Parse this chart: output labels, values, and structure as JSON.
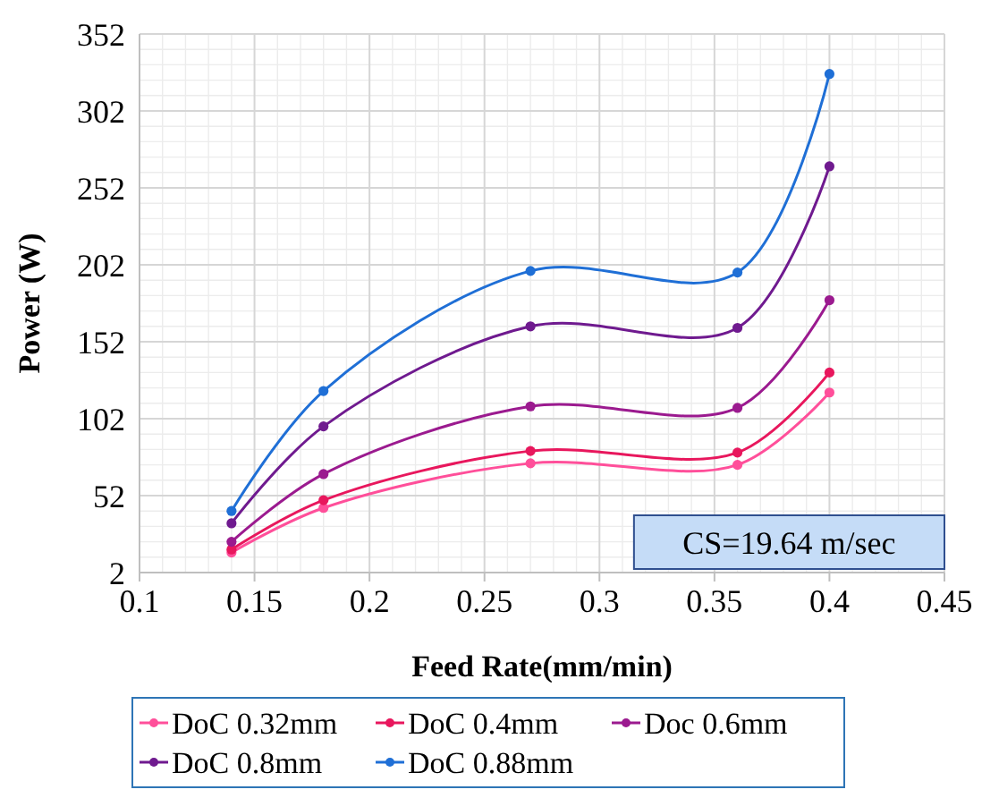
{
  "chart_data": {
    "type": "line",
    "xlabel": "Feed Rate(mm/min)",
    "ylabel": "Power (W)",
    "x": [
      0.14,
      0.18,
      0.27,
      0.36,
      0.4
    ],
    "series": [
      {
        "name": "DoC 0.32mm",
        "color": "#ff4f9a",
        "values": [
          15,
          44,
          73,
          72,
          119
        ]
      },
      {
        "name": "DoC 0.4mm",
        "color": "#e8175d",
        "values": [
          17,
          49,
          81,
          80,
          132
        ]
      },
      {
        "name": "Doc 0.6mm",
        "color": "#9b1a8f",
        "values": [
          22,
          66,
          110,
          109,
          179
        ]
      },
      {
        "name": "DoC 0.8mm",
        "color": "#6f1a8f",
        "values": [
          34,
          97,
          162,
          161,
          266
        ]
      },
      {
        "name": "DoC 0.88mm",
        "color": "#1f6fd6",
        "values": [
          42,
          120,
          198,
          197,
          326
        ]
      }
    ],
    "xlim": [
      0.1,
      0.45
    ],
    "xticks": [
      0.1,
      0.15,
      0.2,
      0.25,
      0.3,
      0.35,
      0.4,
      0.45
    ],
    "ylim": [
      2,
      352
    ],
    "yticks": [
      2,
      52,
      102,
      152,
      202,
      252,
      302,
      352
    ],
    "annotations": [
      "CS=19.64 m/sec"
    ],
    "grid": true,
    "legend": "bottom",
    "marker": "circle",
    "line_style": "solid"
  }
}
